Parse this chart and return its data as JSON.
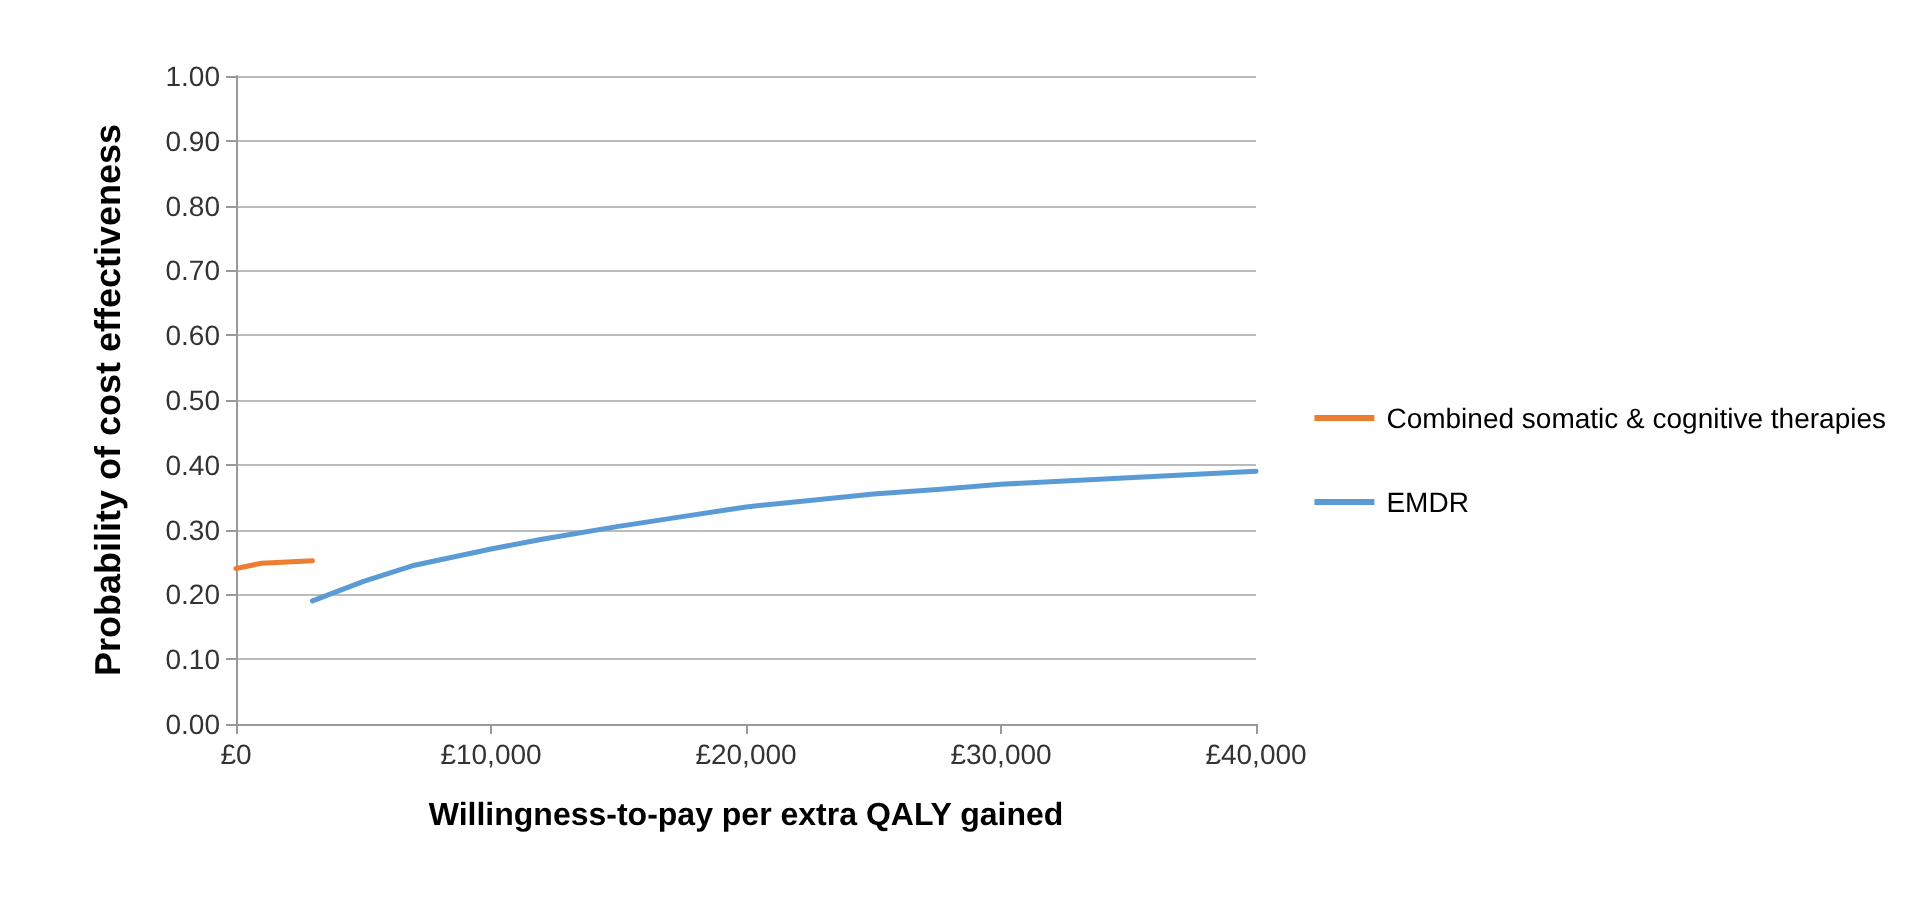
{
  "chart_data": {
    "type": "line",
    "xlabel": "Willingness-to-pay per extra QALY gained",
    "ylabel": "Probability of cost effectiveness",
    "xlim": [
      0,
      40000
    ],
    "xticks": [
      {
        "value": 0,
        "label": "£0"
      },
      {
        "value": 10000,
        "label": "£10,000"
      },
      {
        "value": 20000,
        "label": "£20,000"
      },
      {
        "value": 30000,
        "label": "£30,000"
      },
      {
        "value": 40000,
        "label": "£40,000"
      }
    ],
    "ylim": [
      0,
      1
    ],
    "yticks": [
      {
        "value": 0,
        "label": "0.00"
      },
      {
        "value": 0.1,
        "label": "0.10"
      },
      {
        "value": 0.2,
        "label": "0.20"
      },
      {
        "value": 0.3,
        "label": "0.30"
      },
      {
        "value": 0.4,
        "label": "0.40"
      },
      {
        "value": 0.5,
        "label": "0.50"
      },
      {
        "value": 0.6,
        "label": "0.60"
      },
      {
        "value": 0.7,
        "label": "0.70"
      },
      {
        "value": 0.8,
        "label": "0.80"
      },
      {
        "value": 0.9,
        "label": "0.90"
      },
      {
        "value": 1,
        "label": "1.00"
      }
    ],
    "grid": "y",
    "legend": "right",
    "marker": "none",
    "line_style": "solid",
    "series": [
      {
        "name": "Combined somatic & cognitive therapies",
        "color": "#ed7d31",
        "x": [
          0,
          1000,
          2000,
          3000
        ],
        "values": [
          0.24,
          0.248,
          0.25,
          0.252
        ]
      },
      {
        "name": "EMDR",
        "color": "#5b9bd5",
        "x": [
          3000,
          5000,
          7000,
          10000,
          12000,
          15000,
          17500,
          20000,
          22500,
          25000,
          27500,
          30000,
          32500,
          35000,
          37500,
          40000
        ],
        "values": [
          0.19,
          0.22,
          0.245,
          0.27,
          0.285,
          0.305,
          0.32,
          0.335,
          0.345,
          0.355,
          0.362,
          0.37,
          0.375,
          0.38,
          0.385,
          0.39
        ]
      }
    ]
  }
}
